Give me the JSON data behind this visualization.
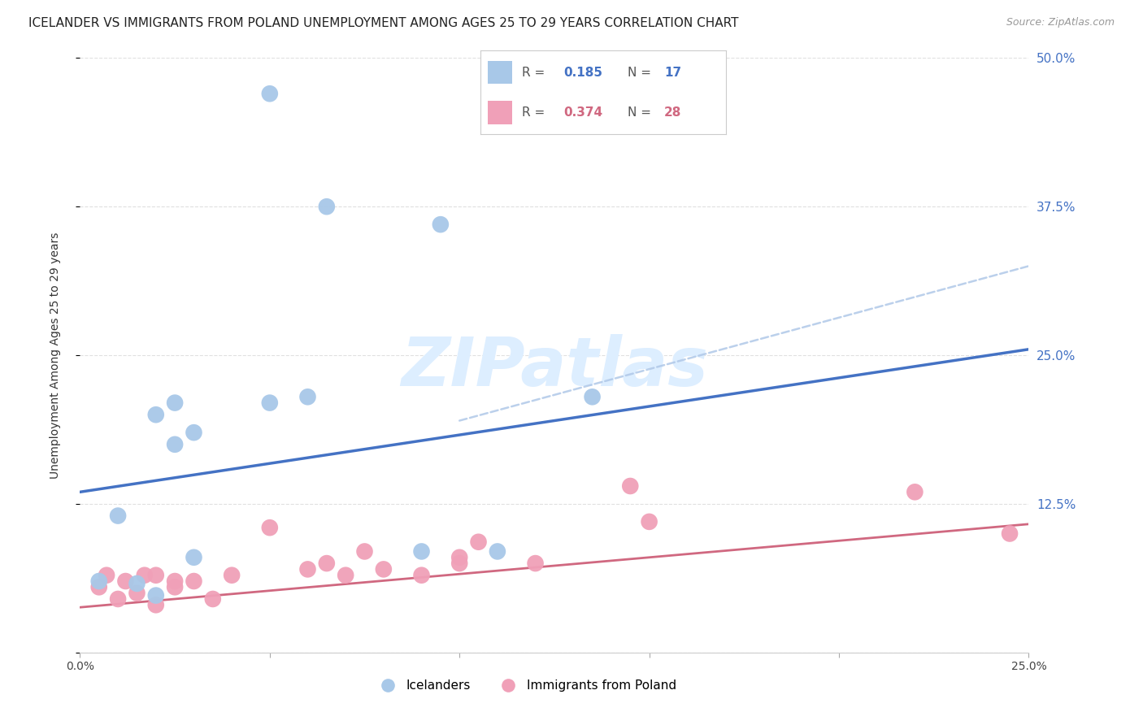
{
  "title": "ICELANDER VS IMMIGRANTS FROM POLAND UNEMPLOYMENT AMONG AGES 25 TO 29 YEARS CORRELATION CHART",
  "source": "Source: ZipAtlas.com",
  "ylabel": "Unemployment Among Ages 25 to 29 years",
  "xlim": [
    0.0,
    0.25
  ],
  "ylim": [
    0.0,
    0.5
  ],
  "xticks": [
    0.0,
    0.05,
    0.1,
    0.15,
    0.2,
    0.25
  ],
  "yticks_right": [
    0.0,
    0.125,
    0.25,
    0.375,
    0.5
  ],
  "icelanders": {
    "x": [
      0.005,
      0.01,
      0.015,
      0.02,
      0.02,
      0.025,
      0.025,
      0.03,
      0.03,
      0.05,
      0.06,
      0.065,
      0.09,
      0.095,
      0.11,
      0.135,
      0.05
    ],
    "y": [
      0.06,
      0.115,
      0.058,
      0.048,
      0.2,
      0.175,
      0.21,
      0.185,
      0.08,
      0.21,
      0.215,
      0.375,
      0.085,
      0.36,
      0.085,
      0.215,
      0.47
    ],
    "color": "#a8c8e8",
    "line_color": "#4472c4",
    "line_x0": 0.0,
    "line_y0": 0.135,
    "line_x1": 0.25,
    "line_y1": 0.255,
    "R": 0.185,
    "N": 17,
    "label": "Icelanders"
  },
  "poland": {
    "x": [
      0.005,
      0.007,
      0.01,
      0.012,
      0.015,
      0.017,
      0.02,
      0.02,
      0.025,
      0.025,
      0.03,
      0.035,
      0.04,
      0.05,
      0.06,
      0.065,
      0.07,
      0.075,
      0.08,
      0.09,
      0.1,
      0.1,
      0.105,
      0.12,
      0.145,
      0.15,
      0.22,
      0.245
    ],
    "y": [
      0.055,
      0.065,
      0.045,
      0.06,
      0.05,
      0.065,
      0.04,
      0.065,
      0.055,
      0.06,
      0.06,
      0.045,
      0.065,
      0.105,
      0.07,
      0.075,
      0.065,
      0.085,
      0.07,
      0.065,
      0.08,
      0.075,
      0.093,
      0.075,
      0.14,
      0.11,
      0.135,
      0.1
    ],
    "color": "#f0a0b8",
    "line_color": "#d06880",
    "line_x0": 0.0,
    "line_y0": 0.038,
    "line_x1": 0.25,
    "line_y1": 0.108,
    "R": 0.374,
    "N": 28,
    "label": "Immigrants from Poland"
  },
  "dashed_line": {
    "color": "#b0c8e8",
    "x0": 0.1,
    "y0": 0.195,
    "x1": 0.25,
    "y1": 0.325
  },
  "watermark": "ZIPatlas",
  "watermark_color": "#ddeeff",
  "grid_color": "#e0e0e0",
  "background_color": "#ffffff",
  "axis_color": "#4472c4",
  "title_fontsize": 11
}
